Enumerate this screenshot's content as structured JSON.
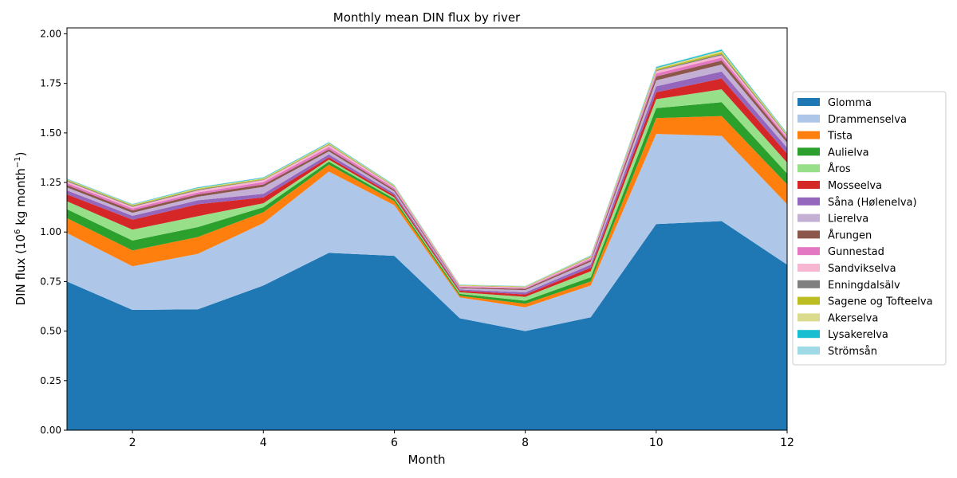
{
  "chart_data": {
    "type": "area",
    "stacked": true,
    "title": "Monthly mean DIN flux by river",
    "xlabel": "Month",
    "ylabel_text": "DIN flux (10",
    "ylabel_exp1": "6",
    "ylabel_mid": " kg month",
    "ylabel_exp2": "−1",
    "ylabel_end": ")",
    "xlim": [
      1,
      12
    ],
    "ylim": [
      0,
      2.03
    ],
    "xticks": [
      2,
      4,
      6,
      8,
      10,
      12
    ],
    "yticks": [
      0.0,
      0.25,
      0.5,
      0.75,
      1.0,
      1.25,
      1.5,
      1.75,
      2.0
    ],
    "ytick_labels": [
      "0.00",
      "0.25",
      "0.50",
      "0.75",
      "1.00",
      "1.25",
      "1.50",
      "1.75",
      "2.00"
    ],
    "legend_position": "right, outside plot",
    "x": [
      1,
      2,
      3,
      4,
      5,
      6,
      7,
      8,
      9,
      10,
      11,
      12
    ],
    "series": [
      {
        "name": "Glomma",
        "color": "#1f77b4",
        "values": [
          0.75,
          0.607,
          0.61,
          0.73,
          0.895,
          0.88,
          0.565,
          0.5,
          0.57,
          1.04,
          1.055,
          0.835
        ]
      },
      {
        "name": "Drammenselva",
        "color": "#aec7e8",
        "values": [
          0.245,
          0.22,
          0.28,
          0.315,
          0.41,
          0.255,
          0.105,
          0.12,
          0.16,
          0.455,
          0.43,
          0.305
        ]
      },
      {
        "name": "Tista",
        "color": "#ff7f0e",
        "values": [
          0.075,
          0.08,
          0.085,
          0.055,
          0.035,
          0.02,
          0.008,
          0.018,
          0.02,
          0.08,
          0.1,
          0.1
        ]
      },
      {
        "name": "Aulielva",
        "color": "#2ca02c",
        "values": [
          0.045,
          0.05,
          0.05,
          0.025,
          0.015,
          0.012,
          0.01,
          0.015,
          0.022,
          0.05,
          0.07,
          0.055
        ]
      },
      {
        "name": "Åros",
        "color": "#98df8a",
        "values": [
          0.04,
          0.055,
          0.055,
          0.02,
          0.01,
          0.008,
          0.008,
          0.02,
          0.03,
          0.045,
          0.065,
          0.055
        ]
      },
      {
        "name": "Mosseelva",
        "color": "#d62728",
        "values": [
          0.035,
          0.05,
          0.06,
          0.03,
          0.012,
          0.01,
          0.008,
          0.012,
          0.018,
          0.035,
          0.055,
          0.045
        ]
      },
      {
        "name": "Såna (Hølenelva)",
        "color": "#9467bd",
        "values": [
          0.02,
          0.02,
          0.02,
          0.018,
          0.015,
          0.01,
          0.006,
          0.01,
          0.015,
          0.03,
          0.035,
          0.03
        ]
      },
      {
        "name": "Lierelva",
        "color": "#c5b0d5",
        "values": [
          0.015,
          0.015,
          0.018,
          0.035,
          0.015,
          0.01,
          0.006,
          0.012,
          0.015,
          0.03,
          0.035,
          0.025
        ]
      },
      {
        "name": "Årungen",
        "color": "#8c564b",
        "values": [
          0.012,
          0.012,
          0.012,
          0.012,
          0.01,
          0.008,
          0.004,
          0.006,
          0.008,
          0.02,
          0.02,
          0.015
        ]
      },
      {
        "name": "Gunnestad",
        "color": "#e377c2",
        "values": [
          0.01,
          0.01,
          0.01,
          0.012,
          0.012,
          0.008,
          0.004,
          0.004,
          0.008,
          0.015,
          0.015,
          0.01
        ]
      },
      {
        "name": "Sandvikselva",
        "color": "#f7b6d2",
        "values": [
          0.008,
          0.008,
          0.01,
          0.01,
          0.01,
          0.006,
          0.004,
          0.004,
          0.006,
          0.012,
          0.012,
          0.008
        ]
      },
      {
        "name": "Enningdalsälv",
        "color": "#7f7f7f",
        "values": [
          0.004,
          0.004,
          0.004,
          0.002,
          0.002,
          0.002,
          0.001,
          0.001,
          0.002,
          0.004,
          0.006,
          0.004
        ]
      },
      {
        "name": "Sagene og Tofteelva",
        "color": "#bcbd22",
        "values": [
          0.004,
          0.004,
          0.004,
          0.004,
          0.004,
          0.003,
          0.002,
          0.002,
          0.003,
          0.006,
          0.008,
          0.004
        ]
      },
      {
        "name": "Akerselva",
        "color": "#dbdb8d",
        "values": [
          0.003,
          0.003,
          0.004,
          0.004,
          0.004,
          0.003,
          0.002,
          0.002,
          0.003,
          0.005,
          0.008,
          0.004
        ]
      },
      {
        "name": "Lysakerelva",
        "color": "#17becf",
        "values": [
          0.002,
          0.002,
          0.003,
          0.003,
          0.003,
          0.002,
          0.001,
          0.001,
          0.002,
          0.005,
          0.006,
          0.003
        ]
      },
      {
        "name": "Strömsån",
        "color": "#9edae5",
        "values": [
          0.002,
          0.002,
          0.002,
          0.002,
          0.002,
          0.002,
          0.001,
          0.001,
          0.001,
          0.003,
          0.003,
          0.002
        ]
      }
    ]
  }
}
